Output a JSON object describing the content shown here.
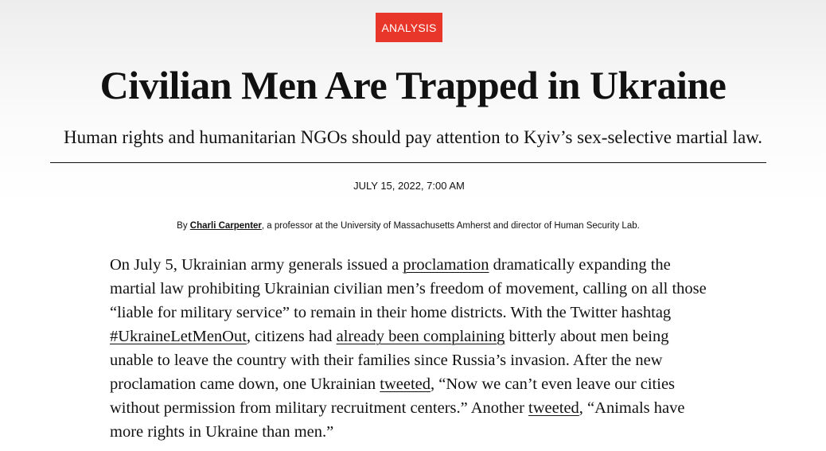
{
  "article": {
    "category": "ANALYSIS",
    "title": "Civilian Men Are Trapped in Ukraine",
    "subtitle": "Human rights and humanitarian NGOs should pay attention to Kyiv’s sex-selective martial law.",
    "date": "JULY 15, 2022, 7:00 AM",
    "byline": {
      "prefix": "By ",
      "author": "Charli Carpenter",
      "suffix": ", a professor at the University of Massachusetts Amherst and director of Human Security Lab."
    },
    "body": [
      {
        "text": "On July 5, Ukrainian army generals issued a ",
        "link": false
      },
      {
        "text": "proclamation",
        "link": true
      },
      {
        "text": " dramatically expanding the martial law prohibiting Ukrainian civilian men’s freedom of movement, calling on all those “liable for military service” to remain in their home districts. With the Twitter hashtag ",
        "link": false
      },
      {
        "text": "#UkraineLetMenOut",
        "link": true
      },
      {
        "text": ", citizens had ",
        "link": false
      },
      {
        "text": "already been complaining",
        "link": true
      },
      {
        "text": " bitterly about men being unable to leave the country with their families since Russia’s invasion. After the new proclamation came down, one Ukrainian ",
        "link": false
      },
      {
        "text": "tweeted",
        "link": true
      },
      {
        "text": ", “Now we can’t even leave our cities without permission from military recruitment centers.” Another ",
        "link": false
      },
      {
        "text": "tweeted",
        "link": true
      },
      {
        "text": ", “Animals have more rights in Ukraine than men.”",
        "link": false
      }
    ]
  },
  "colors": {
    "badge": "#e8372a",
    "text": "#111111"
  }
}
